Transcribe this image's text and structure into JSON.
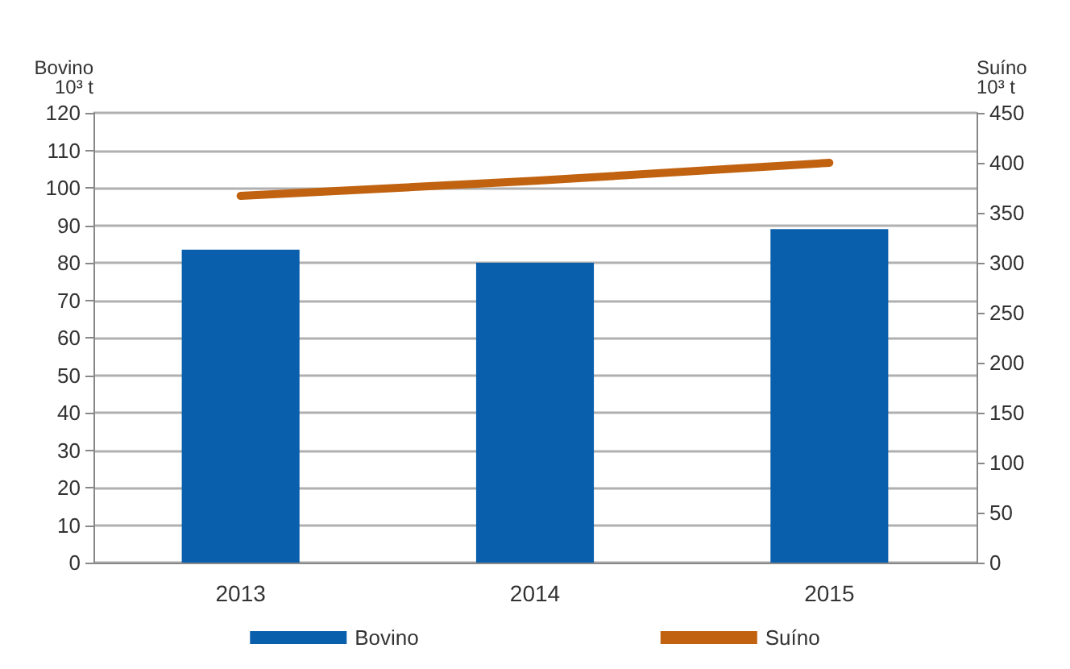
{
  "chart_data": {
    "type": "bar",
    "categories": [
      "2013",
      "2014",
      "2015"
    ],
    "ylabel": "Bovino\n10³ t",
    "y2label": "Suíno\n10³ t",
    "series": [
      {
        "name": "Bovino",
        "color": "#0a5fad",
        "values": [
          83.5,
          80,
          89
        ]
      },
      {
        "name": "Suíno",
        "type": "line",
        "axis": "y2",
        "color": "#c0620f",
        "values": [
          367,
          382,
          400
        ]
      }
    ],
    "ylim": [
      0,
      120
    ],
    "yticks": [
      0,
      10,
      20,
      30,
      40,
      50,
      60,
      70,
      80,
      90,
      100,
      110,
      120
    ],
    "y2lim": [
      0,
      450
    ],
    "y2ticks": [
      0,
      50,
      100,
      150,
      200,
      250,
      300,
      350,
      400,
      450
    ],
    "grid": "y",
    "legend": "bottom",
    "marker": "none",
    "line_style": "solid"
  }
}
